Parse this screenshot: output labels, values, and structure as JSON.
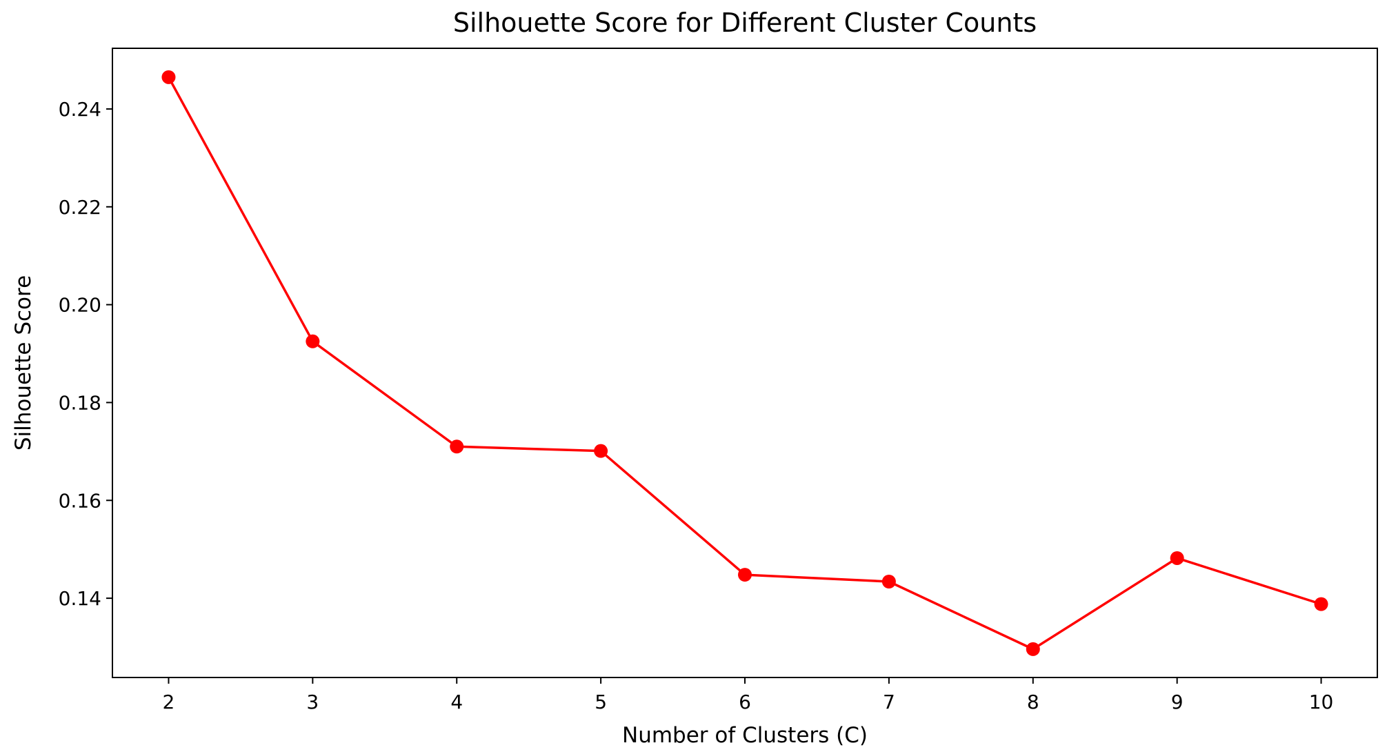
{
  "chart_data": {
    "type": "line",
    "title": "Silhouette Score for Different Cluster Counts",
    "xlabel": "Number of Clusters (C)",
    "ylabel": "Silhouette Score",
    "x": [
      2,
      3,
      4,
      5,
      6,
      7,
      8,
      9,
      10
    ],
    "series": [
      {
        "values": [
          0.2465,
          0.1925,
          0.171,
          0.1701,
          0.1448,
          0.1434,
          0.1296,
          0.1482,
          0.1388
        ],
        "color": "#ff0000",
        "marker": "circle"
      }
    ],
    "xticks": [
      "2",
      "3",
      "4",
      "5",
      "6",
      "7",
      "8",
      "9",
      "10"
    ],
    "yticks": [
      "0.14",
      "0.16",
      "0.18",
      "0.20",
      "0.22",
      "0.24"
    ],
    "ytick_values": [
      0.14,
      0.16,
      0.18,
      0.2,
      0.22,
      0.24
    ],
    "xlim": [
      1.61,
      10.39
    ],
    "ylim": [
      0.1238,
      0.2524
    ],
    "grid": false
  }
}
